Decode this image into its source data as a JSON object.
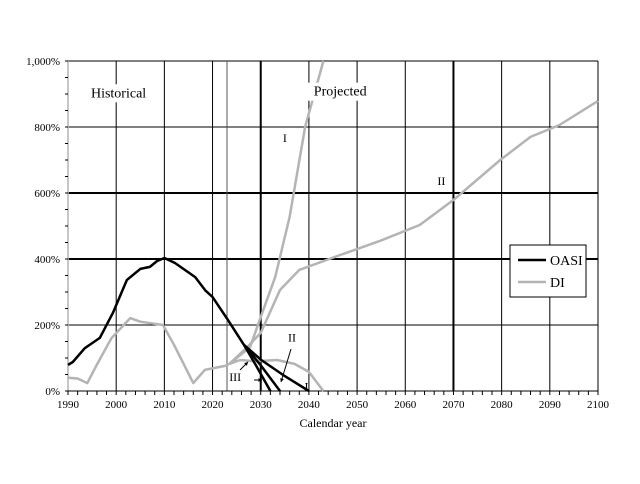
{
  "chart_data": {
    "type": "line",
    "title": "",
    "xlabel": "Calendar year",
    "ylabel": "",
    "xlim": [
      1990,
      2100
    ],
    "ylim": [
      0,
      1000
    ],
    "x_ticks": [
      1990,
      2000,
      2010,
      2020,
      2030,
      2040,
      2050,
      2060,
      2070,
      2080,
      2090,
      2100
    ],
    "y_ticks": [
      0,
      200,
      400,
      600,
      800,
      1000
    ],
    "y_tick_labels": [
      "0%",
      "200%",
      "400%",
      "600%",
      "800%",
      "1,000%"
    ],
    "grid": true,
    "divider_year": 2023,
    "region_labels": [
      {
        "text": "Historical",
        "x": 2000.5,
        "y": 890
      },
      {
        "text": "Projected",
        "x": 2046.5,
        "y": 895
      }
    ],
    "legend": {
      "placement": "right",
      "entries": [
        {
          "name": "OASI",
          "color": "#000000"
        },
        {
          "name": "DI",
          "color": "#b4b4b4"
        }
      ]
    },
    "series": [
      {
        "name": "OASI",
        "color": "#000000",
        "points": [
          [
            1990,
            79
          ],
          [
            1991,
            88
          ],
          [
            1993.5,
            130
          ],
          [
            1996.6,
            161
          ],
          [
            1999.3,
            236
          ],
          [
            2002.2,
            336
          ],
          [
            2005,
            370
          ],
          [
            2007,
            376
          ],
          [
            2008.5,
            394
          ],
          [
            2010,
            403
          ],
          [
            2012.2,
            388
          ],
          [
            2016.4,
            345
          ],
          [
            2018.5,
            305
          ],
          [
            2020,
            285
          ],
          [
            2023.2,
            215
          ],
          [
            2026.5,
            140
          ]
        ]
      },
      {
        "name": "OASI I",
        "color": "#000000",
        "points": [
          [
            2026.5,
            140
          ],
          [
            2030,
            95
          ],
          [
            2035,
            45
          ],
          [
            2040,
            0
          ]
        ]
      },
      {
        "name": "OASI II",
        "color": "#000000",
        "points": [
          [
            2026.5,
            140
          ],
          [
            2030,
            78
          ],
          [
            2034,
            0
          ]
        ]
      },
      {
        "name": "OASI III",
        "color": "#000000",
        "points": [
          [
            2026.5,
            140
          ],
          [
            2029,
            78
          ],
          [
            2032,
            0
          ]
        ]
      },
      {
        "name": "DI",
        "color": "#b4b4b4",
        "points": [
          [
            1990,
            40
          ],
          [
            1992,
            38
          ],
          [
            1994,
            24
          ],
          [
            1996,
            80
          ],
          [
            1999,
            160
          ],
          [
            2002.9,
            221
          ],
          [
            2005,
            210
          ],
          [
            2009.7,
            200
          ],
          [
            2012,
            140
          ],
          [
            2016,
            24
          ],
          [
            2018.4,
            64
          ],
          [
            2020.5,
            70
          ],
          [
            2022.6,
            76
          ],
          [
            2023.5,
            82
          ]
        ]
      },
      {
        "name": "DI I",
        "color": "#b4b4b4",
        "points": [
          [
            2023.5,
            82
          ],
          [
            2027.8,
            133
          ],
          [
            2030,
            224
          ],
          [
            2033,
            345
          ],
          [
            2036,
            527
          ],
          [
            2039.2,
            800
          ],
          [
            2043,
            1000
          ]
        ]
      },
      {
        "name": "DI II",
        "color": "#b4b4b4",
        "points": [
          [
            2023.5,
            82
          ],
          [
            2027,
            130
          ],
          [
            2030,
            176
          ],
          [
            2034,
            306
          ],
          [
            2038,
            367
          ],
          [
            2046.5,
            412
          ],
          [
            2054.8,
            455
          ],
          [
            2063,
            503
          ],
          [
            2070,
            579
          ],
          [
            2079.7,
            700
          ],
          [
            2086,
            770
          ],
          [
            2092,
            806
          ],
          [
            2100,
            879
          ]
        ]
      },
      {
        "name": "DI III",
        "color": "#b4b4b4",
        "points": [
          [
            2023.5,
            82
          ],
          [
            2025.7,
            94
          ],
          [
            2029,
            90
          ],
          [
            2033.4,
            94
          ],
          [
            2037,
            82
          ],
          [
            2040,
            58
          ],
          [
            2043,
            0
          ]
        ]
      }
    ],
    "annotations": [
      {
        "text": "I",
        "x": 2035,
        "y": 755
      },
      {
        "text": "II",
        "x": 2067.5,
        "y": 625
      },
      {
        "text": "II",
        "x": 2036.5,
        "y": 150
      },
      {
        "text": "III",
        "x": 2024.7,
        "y": 30
      },
      {
        "text": "I",
        "x": 2039.5,
        "y": 2
      }
    ]
  }
}
